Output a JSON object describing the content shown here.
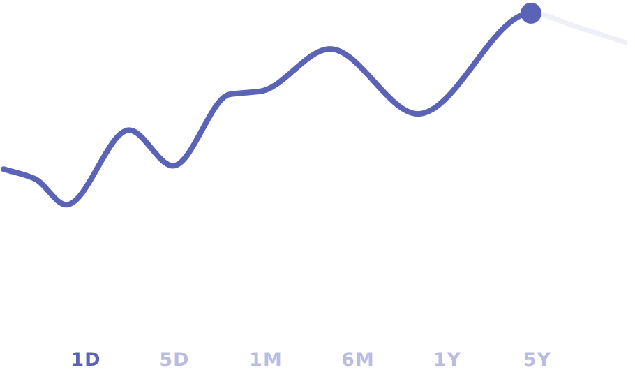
{
  "colors": {
    "line": "#5b63b7",
    "future_line": "#efeff7",
    "active_tab": "#5b63b7",
    "inactive_tab": "#b9bde2"
  },
  "range_tabs": {
    "active": "1D",
    "items": [
      {
        "label": "1D"
      },
      {
        "label": "5D"
      },
      {
        "label": "1M"
      },
      {
        "label": "6M"
      },
      {
        "label": "1Y"
      },
      {
        "label": "5Y"
      }
    ]
  },
  "chart_data": {
    "type": "line",
    "title": "",
    "xlabel": "",
    "ylabel": "",
    "grid": false,
    "legend": "none",
    "xlim": [
      0,
      100
    ],
    "ylim": [
      0,
      100
    ],
    "series": [
      {
        "x": [
          0,
          5,
          10,
          20,
          27,
          36,
          41,
          52,
          66,
          84,
          91,
          99
        ],
        "values": [
          49,
          46,
          38,
          61,
          50,
          72,
          73,
          86,
          66,
          97,
          93,
          88
        ]
      }
    ],
    "current_point": {
      "x": 84,
      "y": 97
    }
  }
}
